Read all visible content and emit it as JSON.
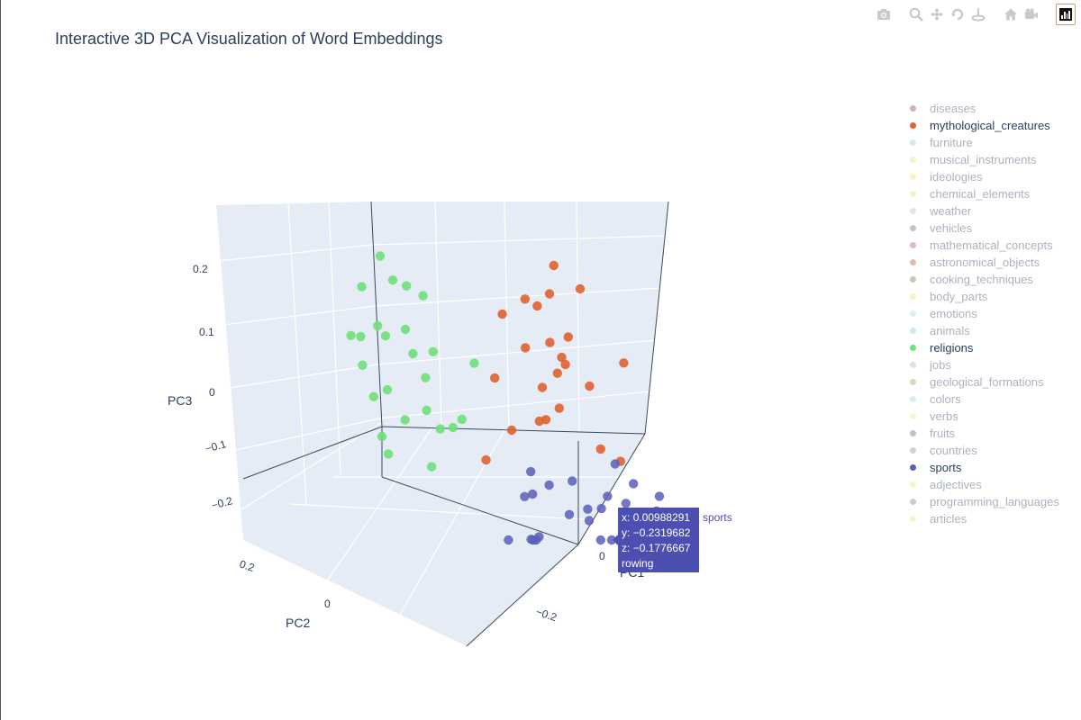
{
  "title": "Interactive 3D PCA Visualization of Word Embeddings",
  "modebar": {
    "buttons": [
      "camera-icon",
      "zoom-icon",
      "pan-icon",
      "orbit-icon",
      "turntable-icon",
      "home-icon",
      "camera-view-icon",
      "plotly-logo-icon"
    ]
  },
  "legend": [
    {
      "name": "diseases",
      "color": "#8b3a3a",
      "active": false
    },
    {
      "name": "mythological_creatures",
      "color": "#e0622f",
      "active": true
    },
    {
      "name": "furniture",
      "color": "#7fd6a0",
      "active": false
    },
    {
      "name": "musical_instruments",
      "color": "#f0e070",
      "active": false
    },
    {
      "name": "ideologies",
      "color": "#f2e36a",
      "active": false
    },
    {
      "name": "chemical_elements",
      "color": "#e6dc7a",
      "active": false
    },
    {
      "name": "weather",
      "color": "#b9b9c4",
      "active": false
    },
    {
      "name": "vehicles",
      "color": "#7a5a6a",
      "active": false
    },
    {
      "name": "mathematical_concepts",
      "color": "#b5524a",
      "active": false
    },
    {
      "name": "astronomical_objects",
      "color": "#a7553e",
      "active": false
    },
    {
      "name": "cooking_techniques",
      "color": "#8a7048",
      "active": false
    },
    {
      "name": "body_parts",
      "color": "#efdf78",
      "active": false
    },
    {
      "name": "emotions",
      "color": "#a8dcb9",
      "active": false
    },
    {
      "name": "animals",
      "color": "#7fd49a",
      "active": false
    },
    {
      "name": "religions",
      "color": "#6fe07a",
      "active": true
    },
    {
      "name": "jobs",
      "color": "#aeb0c5",
      "active": false
    },
    {
      "name": "geological_formations",
      "color": "#9a9a5a",
      "active": false
    },
    {
      "name": "colors",
      "color": "#9ed6c2",
      "active": false
    },
    {
      "name": "verbs",
      "color": "#f2e67a",
      "active": false
    },
    {
      "name": "fruits",
      "color": "#5c6a7a",
      "active": false
    },
    {
      "name": "countries",
      "color": "#8a8f9c",
      "active": false
    },
    {
      "name": "sports",
      "color": "#5a5fb8",
      "active": true
    },
    {
      "name": "adjectives",
      "color": "#f1e06e",
      "active": false
    },
    {
      "name": "programming_languages",
      "color": "#7e7e86",
      "active": false
    },
    {
      "name": "articles",
      "color": "#f0e27a",
      "active": false
    }
  ],
  "chart_data": {
    "type": "scatter",
    "title": "Interactive 3D PCA Visualization of Word Embeddings",
    "axes": {
      "x": {
        "label": "PC1",
        "ticks": [
          "0",
          "−0.2"
        ]
      },
      "y": {
        "label": "PC2",
        "ticks": [
          "0.2",
          "0",
          "−0.2"
        ]
      },
      "z": {
        "label": "PC3",
        "ticks": [
          "0.2",
          "0.1",
          "0",
          "−0.1",
          "−0.2"
        ]
      }
    },
    "series": [
      {
        "name": "religions",
        "color": "#6fe07a",
        "points": [
          {
            "x": 0.05,
            "y": 0.25,
            "z": 0.22
          },
          {
            "x": 0.03,
            "y": 0.2,
            "z": 0.18
          },
          {
            "x": 0.06,
            "y": 0.22,
            "z": 0.19
          },
          {
            "x": 0.08,
            "y": 0.28,
            "z": 0.17
          },
          {
            "x": -0.02,
            "y": 0.18,
            "z": 0.16
          },
          {
            "x": 0.1,
            "y": 0.24,
            "z": 0.12
          },
          {
            "x": 0.12,
            "y": 0.27,
            "z": 0.1
          },
          {
            "x": 0.09,
            "y": 0.3,
            "z": 0.09
          },
          {
            "x": 0.11,
            "y": 0.22,
            "z": 0.11
          },
          {
            "x": 0.07,
            "y": 0.19,
            "z": 0.12
          },
          {
            "x": 0.05,
            "y": 0.18,
            "z": 0.08
          },
          {
            "x": 0.14,
            "y": 0.26,
            "z": 0.06
          },
          {
            "x": 0.13,
            "y": 0.21,
            "z": 0.03
          },
          {
            "x": 0.16,
            "y": 0.23,
            "z": 0.02
          },
          {
            "x": 0.06,
            "y": 0.15,
            "z": 0.05
          },
          {
            "x": 0.04,
            "y": 0.14,
            "z": 0.09
          },
          {
            "x": 0.15,
            "y": 0.12,
            "z": 0.02
          },
          {
            "x": 0.17,
            "y": 0.16,
            "z": 0.0
          },
          {
            "x": 0.12,
            "y": 0.1,
            "z": -0.01
          },
          {
            "x": 0.2,
            "y": 0.2,
            "z": -0.03
          },
          {
            "x": 0.22,
            "y": 0.18,
            "z": -0.05
          },
          {
            "x": 0.1,
            "y": 0.06,
            "z": 0.01
          },
          {
            "x": 0.13,
            "y": 0.07,
            "z": 0.0
          },
          {
            "x": 0.08,
            "y": 0.04,
            "z": 0.1
          },
          {
            "x": 0.18,
            "y": 0.1,
            "z": -0.06
          }
        ]
      },
      {
        "name": "mythological_creatures",
        "color": "#e0622f",
        "points": [
          {
            "x": -0.18,
            "y": -0.05,
            "z": 0.23
          },
          {
            "x": -0.15,
            "y": -0.05,
            "z": 0.19
          },
          {
            "x": -0.2,
            "y": -0.1,
            "z": 0.2
          },
          {
            "x": -0.13,
            "y": -0.03,
            "z": 0.17
          },
          {
            "x": -0.11,
            "y": -0.01,
            "z": 0.18
          },
          {
            "x": -0.05,
            "y": 0.02,
            "z": 0.16
          },
          {
            "x": -0.12,
            "y": -0.06,
            "z": 0.12
          },
          {
            "x": -0.15,
            "y": -0.09,
            "z": 0.13
          },
          {
            "x": -0.08,
            "y": -0.02,
            "z": 0.11
          },
          {
            "x": -0.17,
            "y": -0.07,
            "z": 0.09
          },
          {
            "x": -0.14,
            "y": -0.07,
            "z": 0.07
          },
          {
            "x": -0.03,
            "y": 0.03,
            "z": 0.06
          },
          {
            "x": -0.1,
            "y": -0.05,
            "z": 0.05
          },
          {
            "x": -0.2,
            "y": -0.12,
            "z": 0.05
          },
          {
            "x": -0.12,
            "y": -0.08,
            "z": 0.02
          },
          {
            "x": -0.08,
            "y": -0.05,
            "z": 0.0
          },
          {
            "x": -0.06,
            "y": -0.07,
            "z": 0.01
          },
          {
            "x": -0.05,
            "y": 0.0,
            "z": -0.02
          },
          {
            "x": -0.18,
            "y": -0.15,
            "z": -0.04
          },
          {
            "x": -0.22,
            "y": -0.18,
            "z": -0.06
          },
          {
            "x": 0.03,
            "y": 0.03,
            "z": -0.06
          },
          {
            "x": -0.21,
            "y": -0.19,
            "z": 0.1
          },
          {
            "x": -0.13,
            "y": -0.09,
            "z": 0.09
          }
        ]
      },
      {
        "name": "sports",
        "color": "#5a5fb8",
        "points": [
          {
            "x": -0.02,
            "y": -0.05,
            "z": -0.07
          },
          {
            "x": -0.05,
            "y": -0.08,
            "z": -0.09
          },
          {
            "x": 0.0,
            "y": -0.06,
            "z": -0.1
          },
          {
            "x": -0.01,
            "y": -0.04,
            "z": -0.11
          },
          {
            "x": -0.08,
            "y": -0.12,
            "z": -0.08
          },
          {
            "x": -0.15,
            "y": -0.19,
            "z": -0.05
          },
          {
            "x": -0.13,
            "y": -0.18,
            "z": -0.1
          },
          {
            "x": -0.18,
            "y": -0.22,
            "z": -0.08
          },
          {
            "x": -0.16,
            "y": -0.21,
            "z": -0.11
          },
          {
            "x": -0.09,
            "y": -0.15,
            "z": -0.12
          },
          {
            "x": -0.12,
            "y": -0.17,
            "z": -0.12
          },
          {
            "x": -0.06,
            "y": -0.12,
            "z": -0.13
          },
          {
            "x": -0.1,
            "y": -0.15,
            "z": -0.14
          },
          {
            "x": -0.18,
            "y": -0.24,
            "z": -0.13
          },
          {
            "x": -0.19,
            "y": -0.25,
            "z": -0.15
          },
          {
            "x": -0.21,
            "y": -0.26,
            "z": -0.12
          },
          {
            "x": -0.23,
            "y": -0.26,
            "z": -0.1
          },
          {
            "x": 0.02,
            "y": -0.08,
            "z": -0.16
          },
          {
            "x": 0.01,
            "y": -0.06,
            "z": -0.17
          },
          {
            "x": 0.03,
            "y": -0.07,
            "z": -0.18
          },
          {
            "x": 0.07,
            "y": -0.03,
            "z": -0.2
          },
          {
            "x": 0.04,
            "y": -0.08,
            "z": -0.23
          },
          {
            "x": -0.05,
            "y": -0.19,
            "z": -0.19
          },
          {
            "x": 0.00988291,
            "y": -0.2319682,
            "z": -0.1776667
          }
        ]
      }
    ],
    "hover": {
      "series": "sports",
      "x_text": "x: 0.00988291",
      "y_text": "y: −0.2319682",
      "z_text": "z: −0.1776667",
      "word": "rowing"
    }
  }
}
